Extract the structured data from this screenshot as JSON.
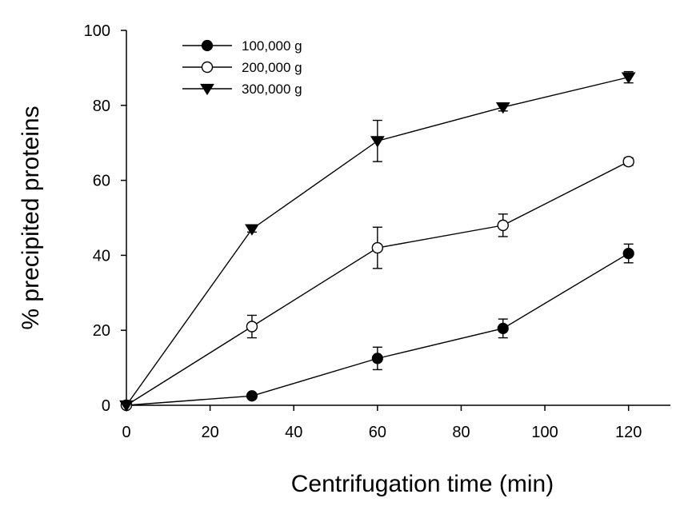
{
  "chart_data": {
    "type": "line",
    "title": "",
    "xlabel": "Centrifugation time (min)",
    "ylabel": "% precipited proteins",
    "xlim": [
      0,
      130
    ],
    "ylim": [
      0,
      100
    ],
    "xticks": [
      0,
      20,
      40,
      60,
      80,
      100,
      120
    ],
    "yticks": [
      0,
      20,
      40,
      60,
      80,
      100
    ],
    "grid": false,
    "legend_position": "top-left",
    "x": [
      0,
      30,
      60,
      90,
      120
    ],
    "series": [
      {
        "name": "100,000 g",
        "marker": "filled-circle",
        "values": [
          0,
          2.5,
          12.5,
          20.5,
          40.5
        ],
        "errors": [
          0,
          0.5,
          3,
          2.5,
          2.5
        ]
      },
      {
        "name": "200,000 g",
        "marker": "open-circle",
        "values": [
          0,
          21,
          42,
          48,
          65
        ],
        "errors": [
          0,
          3,
          5.5,
          3,
          1
        ]
      },
      {
        "name": "300,000 g",
        "marker": "filled-triangle-down",
        "values": [
          0,
          47,
          70.5,
          79.5,
          87.5
        ],
        "errors": [
          0,
          0.8,
          5.5,
          1,
          1.5
        ]
      }
    ]
  }
}
